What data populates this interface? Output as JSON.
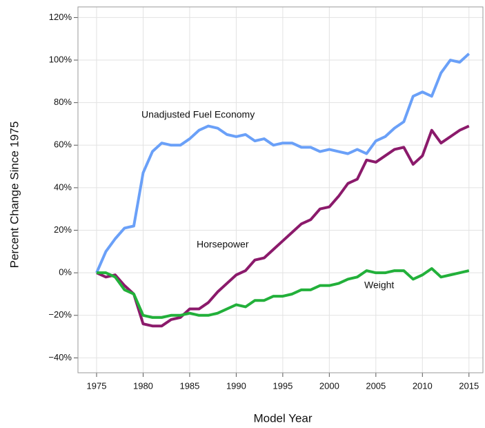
{
  "chart_data": {
    "type": "line",
    "x_label": "Model Year",
    "y_label": "Percent Change Since 1975",
    "x": [
      1975,
      1976,
      1977,
      1978,
      1979,
      1980,
      1981,
      1982,
      1983,
      1984,
      1985,
      1986,
      1987,
      1988,
      1989,
      1990,
      1991,
      1992,
      1993,
      1994,
      1995,
      1996,
      1997,
      1998,
      1999,
      2000,
      2001,
      2002,
      2003,
      2004,
      2005,
      2006,
      2007,
      2008,
      2009,
      2010,
      2011,
      2012,
      2013,
      2014,
      2015
    ],
    "series": [
      {
        "name": "Unadjusted Fuel Economy",
        "color": "#6aa0f8",
        "values": [
          0,
          10,
          16,
          21,
          22,
          47,
          57,
          61,
          60,
          60,
          63,
          67,
          69,
          68,
          65,
          64,
          65,
          62,
          63,
          60,
          61,
          61,
          59,
          59,
          57,
          58,
          57,
          56,
          58,
          56,
          62,
          64,
          68,
          71,
          83,
          85,
          83,
          94,
          100,
          99,
          103
        ]
      },
      {
        "name": "Horsepower",
        "color": "#8b1a6b",
        "values": [
          0,
          -2,
          -1,
          -6,
          -10,
          -24,
          -25,
          -25,
          -22,
          -21,
          -17,
          -17,
          -14,
          -9,
          -5,
          -1,
          1,
          6,
          7,
          11,
          15,
          19,
          23,
          25,
          30,
          31,
          36,
          42,
          44,
          53,
          52,
          55,
          58,
          59,
          51,
          55,
          67,
          61,
          64,
          67,
          69
        ]
      },
      {
        "name": "Weight",
        "color": "#22b03a",
        "values": [
          0,
          0,
          -2,
          -8,
          -10,
          -20,
          -21,
          -21,
          -20,
          -20,
          -19,
          -20,
          -20,
          -19,
          -17,
          -15,
          -16,
          -13,
          -13,
          -11,
          -11,
          -10,
          -8,
          -8,
          -6,
          -6,
          -5,
          -3,
          -2,
          1,
          0,
          0,
          1,
          1,
          -3,
          -1,
          2,
          -2,
          -1,
          0,
          1
        ]
      }
    ],
    "xlim": [
      1973,
      2016.5
    ],
    "xticks": [
      1975,
      1980,
      1985,
      1990,
      1995,
      2000,
      2005,
      2010,
      2015
    ],
    "ylim": [
      -47,
      125
    ],
    "yticks": [
      {
        "value": -40,
        "label": "−40%"
      },
      {
        "value": -20,
        "label": "−20%"
      },
      {
        "value": 0,
        "label": "0%"
      },
      {
        "value": 20,
        "label": "20%"
      },
      {
        "value": 40,
        "label": "40%"
      },
      {
        "value": 60,
        "label": "60%"
      },
      {
        "value": 80,
        "label": "80%"
      },
      {
        "value": 100,
        "label": "100%"
      },
      {
        "value": 120,
        "label": "120%"
      }
    ],
    "grid": true
  }
}
